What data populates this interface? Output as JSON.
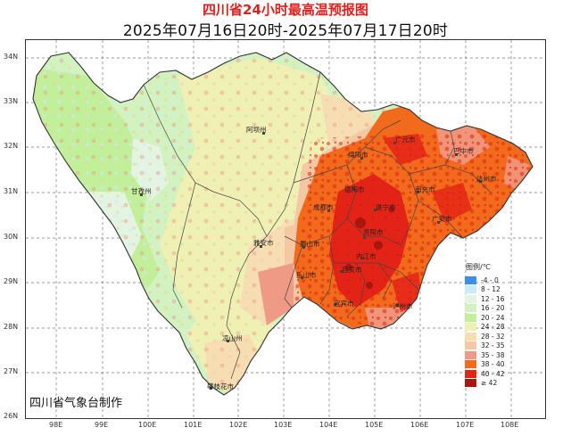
{
  "title": "四川省24小时最高温预报图",
  "subtitle": "2025年07月16日20时-2025年07月17日20时",
  "producer": "四川省气象台制作",
  "y_labels": [
    "34N",
    "33N",
    "32N",
    "31N",
    "30N",
    "29N",
    "28N",
    "27N",
    "26N"
  ],
  "x_labels": [
    "98E",
    "99E",
    "100E",
    "101E",
    "102E",
    "103E",
    "104E",
    "105E",
    "106E",
    "107E",
    "108E"
  ],
  "cities": [
    "阿坝州",
    "甘孜州",
    "绵阳市",
    "广元市",
    "巴中市",
    "德阳市",
    "南充市",
    "达州市",
    "成都市",
    "遂宁市",
    "广安市",
    "雅安市",
    "眉山市",
    "资阳市",
    "乐山市",
    "内江市",
    "自贡市",
    "宜宾市",
    "泸州市",
    "凉山州",
    "攀枝花市"
  ],
  "legend": {
    "title": "图例/℃",
    "items": [
      {
        "label": "-4 - 0",
        "color": "#3d8fe8"
      },
      {
        "label": "8 - 12",
        "color": "#c9ecfa"
      },
      {
        "label": "12 - 16",
        "color": "#e3f4e3"
      },
      {
        "label": "16 - 20",
        "color": "#d2f2c0"
      },
      {
        "label": "20 - 24",
        "color": "#c2f09a"
      },
      {
        "label": "24 - 28",
        "color": "#eef0b4"
      },
      {
        "label": "28 - 32",
        "color": "#f7ddb2"
      },
      {
        "label": "32 - 35",
        "color": "#f5c7a2"
      },
      {
        "label": "35 - 38",
        "color": "#ef9a84"
      },
      {
        "label": "38 - 40",
        "color": "#f26a1c"
      },
      {
        "label": "40 - 42",
        "color": "#e42317"
      },
      {
        "label": "≥ 42",
        "color": "#a8160f"
      }
    ]
  }
}
